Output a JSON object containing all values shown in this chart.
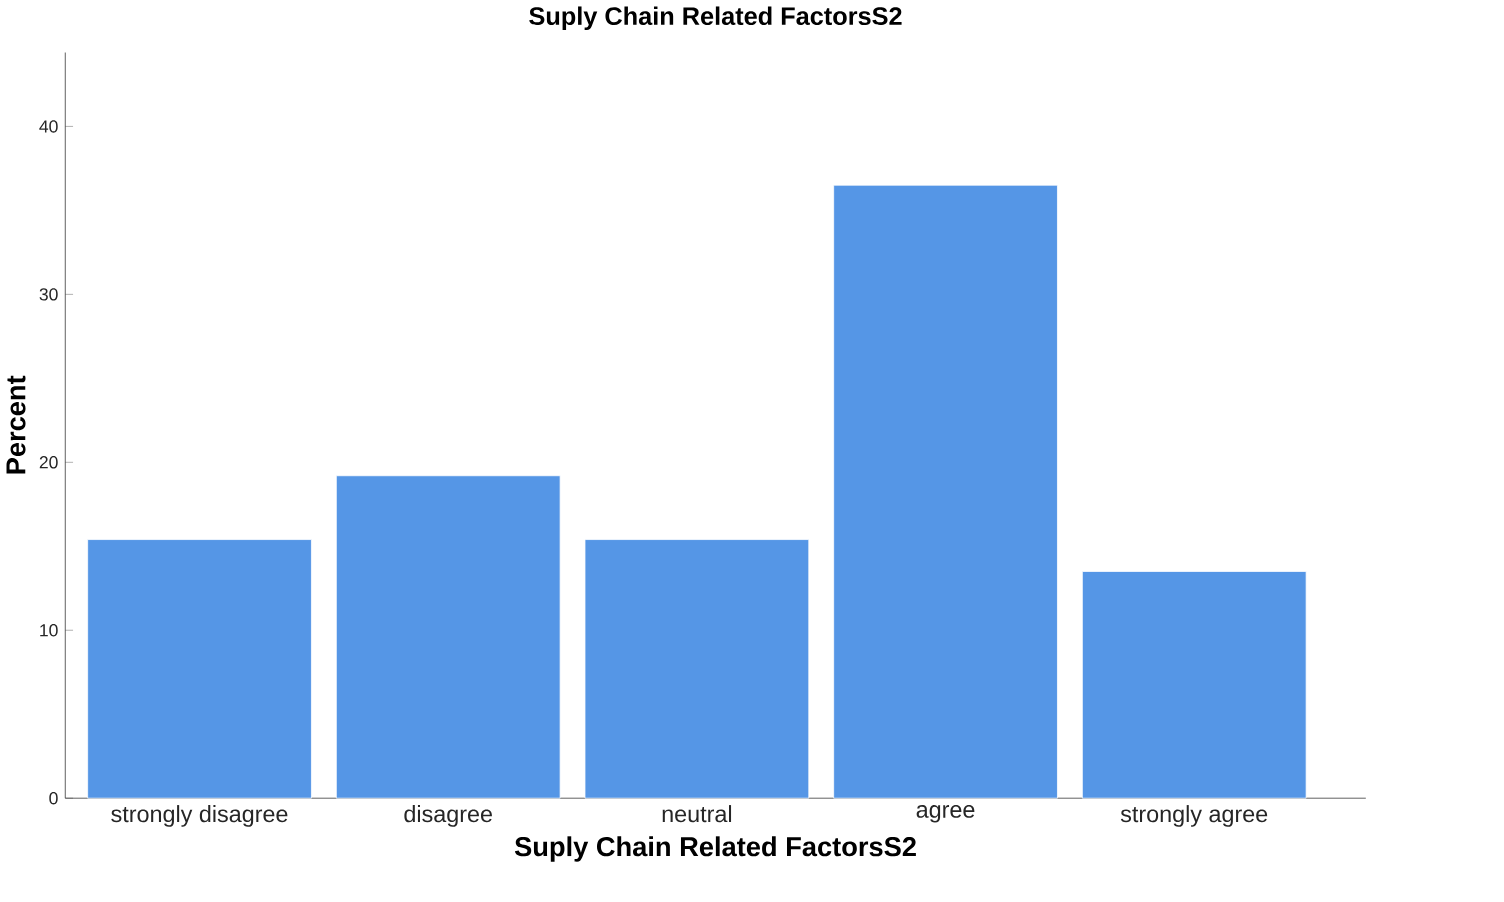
{
  "chart_data": {
    "type": "bar",
    "title": "Suply Chain Related FactorsS2",
    "xlabel": "Suply Chain Related FactorsS2",
    "ylabel": "Percent",
    "categories": [
      "strongly disagree",
      "disagree",
      "neutral",
      "agree",
      "strongly agree"
    ],
    "values": [
      15.4,
      19.2,
      15.4,
      36.5,
      13.5
    ],
    "color": "#5596e6",
    "ylim": [
      0,
      44.4
    ],
    "yticks": [
      0,
      10,
      20,
      30,
      40
    ],
    "grid": false
  }
}
